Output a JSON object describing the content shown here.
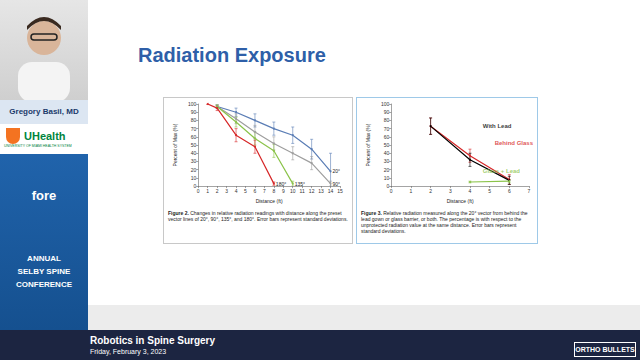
{
  "slide": {
    "title": "Radiation Exposure",
    "speaker": "Gregory Basil, MD",
    "org": "UHealth",
    "org_sub": "UNIVERSITY OF MIAMI HEALTH SYSTEM",
    "sponsor": "fore",
    "conference": [
      "ANNUAL",
      "SELBY SPINE",
      "CONFERENCE"
    ],
    "talk": "Robotics in Spine Surgery",
    "date": "Friday, February 3, 2023",
    "brand": "ORTHO BULLETS"
  },
  "chart_data": [
    {
      "type": "line",
      "x_label": "Distance (ft)",
      "y_label": "Percent of Max (%)",
      "caption": {
        "label": "Figure 2.",
        "text": "Changes in relative radiation readings with distance along the preset vector lines of 20°, 90°, 135°, and 180°. Error bars represent standard deviations."
      },
      "xlim": [
        0,
        15
      ],
      "xticks": [
        0,
        1,
        2,
        3,
        4,
        5,
        6,
        7,
        8,
        9,
        10,
        11,
        12,
        13,
        14,
        15
      ],
      "ylim": [
        0,
        100
      ],
      "yticks": [
        0,
        10,
        20,
        30,
        40,
        50,
        60,
        70,
        80,
        90,
        100
      ],
      "grid": false,
      "series": [
        {
          "name": "20°",
          "color": "#5a7db5",
          "x": [
            2,
            4,
            6,
            8,
            10,
            12,
            14
          ],
          "values": [
            97,
            90,
            80,
            70,
            62,
            45,
            18
          ],
          "errors": [
            2,
            5,
            8,
            8,
            10,
            12,
            22
          ]
        },
        {
          "name": "90°",
          "color": "#9e9e9e",
          "x": [
            2,
            4,
            6,
            8,
            10,
            12,
            14
          ],
          "values": [
            97,
            82,
            66,
            52,
            40,
            28,
            3
          ],
          "errors": [
            2,
            6,
            8,
            8,
            8,
            8,
            3
          ]
        },
        {
          "name": "135°",
          "color": "#8bc34a",
          "x": [
            2,
            4,
            6,
            8,
            10
          ],
          "values": [
            97,
            78,
            58,
            43,
            3
          ],
          "errors": [
            2,
            6,
            8,
            8,
            3
          ]
        },
        {
          "name": "180°",
          "color": "#d62728",
          "x": [
            1,
            2,
            4,
            6,
            8
          ],
          "values": [
            100,
            95,
            62,
            48,
            3
          ],
          "errors": [
            0,
            3,
            8,
            8,
            2
          ]
        }
      ]
    },
    {
      "type": "line",
      "x_label": "Distance (ft)",
      "y_label": "Percent of Max (%)",
      "caption": {
        "label": "Figure 3.",
        "text": "Relative radiation measured along the 20° vector from behind the lead gown or glass barrier, or both. The percentage is with respect to the unprotected radiation value at the same distance. Error bars represent standard deviations."
      },
      "xlim": [
        0,
        7
      ],
      "xticks": [
        0,
        1,
        2,
        3,
        4,
        5,
        6,
        7
      ],
      "ylim": [
        0,
        100
      ],
      "yticks": [
        0,
        10,
        20,
        30,
        40,
        50,
        60,
        70,
        80,
        90,
        100
      ],
      "grid": false,
      "series": [
        {
          "name": "Behind Glass",
          "color": "#d62728",
          "x": [
            2,
            4,
            6
          ],
          "values": [
            73,
            37,
            8
          ],
          "errors": [
            10,
            8,
            6
          ]
        },
        {
          "name": "With Lead",
          "color": "#000000",
          "x": [
            2,
            4,
            6
          ],
          "values": [
            73,
            32,
            7
          ],
          "errors": [
            10,
            8,
            5
          ]
        },
        {
          "name": "Glass + Lead",
          "color": "#8bc34a",
          "x": [
            4,
            6
          ],
          "values": [
            5,
            6
          ],
          "errors": [
            1,
            2
          ]
        }
      ],
      "annotations": [
        {
          "text": "With Lead",
          "x": 4.4,
          "y": 73,
          "color": "#000000"
        },
        {
          "text": "Behind Glass",
          "x": 5.0,
          "y": 53,
          "color": "#d62728"
        },
        {
          "text": "Glass + Lead",
          "x": 4.4,
          "y": 18,
          "color": "#8bc34a"
        }
      ]
    }
  ]
}
